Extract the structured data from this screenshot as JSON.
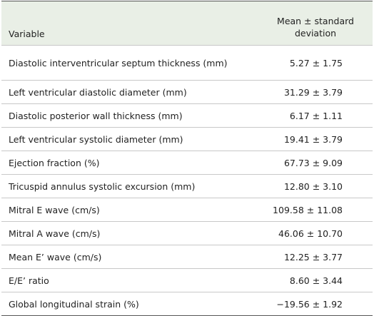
{
  "table": {
    "header": [
      "Variable",
      "Mean ± standard deviation"
    ],
    "rows": [
      [
        "Diastolic interventricular septum thickness (mm)",
        "5.27 ± 1.75"
      ],
      [
        "Left ventricular diastolic diameter (mm)",
        "31.29 ± 3.79"
      ],
      [
        "Diastolic posterior wall thickness (mm)",
        "6.17 ± 1.11"
      ],
      [
        "Left ventricular systolic diameter (mm)",
        "19.41 ± 3.79"
      ],
      [
        "Ejection fraction (%)",
        "67.73 ± 9.09"
      ],
      [
        "Tricuspid annulus systolic excursion (mm)",
        "12.80 ± 3.10"
      ],
      [
        "Mitral E wave (cm/s)",
        "109.58 ± 11.08"
      ],
      [
        "Mitral A wave (cm/s)",
        "46.06 ± 10.70"
      ],
      [
        "Mean E’ wave (cm/s)",
        "12.25 ± 3.77"
      ],
      [
        "E/E’ ratio",
        "8.60 ± 3.44"
      ],
      [
        "Global longitudinal strain (%)",
        "−19.56 ± 1.92"
      ]
    ]
  }
}
